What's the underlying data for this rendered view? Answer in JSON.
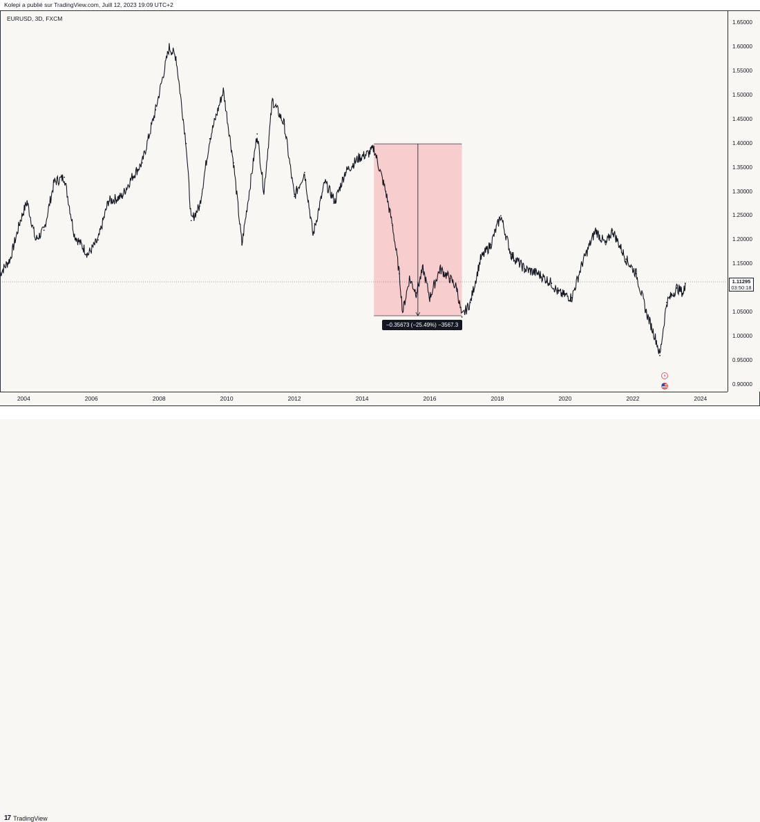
{
  "header": {
    "publisher": "Kolepi a publié sur TradingView.com, Juill 12, 2023 19:09 UTC+2"
  },
  "symbol": {
    "label": "EURUSD, 3D, FXCM"
  },
  "price_tag": {
    "price": "1.11295",
    "countdown": "03:50:18"
  },
  "measure": {
    "label": "−0.35673 (−25.49%) −3567.3"
  },
  "footer": {
    "brand": "TradingView",
    "logo": "17"
  },
  "colors": {
    "line": "#131722",
    "measure_fill": "#f7c6c7",
    "grid": "#e0e3eb"
  },
  "chart_data": {
    "type": "line",
    "series": [
      {
        "values": [
          [
            "2003.3",
            1.13
          ],
          [
            "2003.6",
            1.16
          ],
          [
            "2003.9",
            1.24
          ],
          [
            "2004.1",
            1.28
          ],
          [
            "2004.35",
            1.2
          ],
          [
            "2004.6",
            1.22
          ],
          [
            "2004.9",
            1.32
          ],
          [
            "2005.2",
            1.33
          ],
          [
            "2005.5",
            1.21
          ],
          [
            "2005.9",
            1.17
          ],
          [
            "2006.2",
            1.2
          ],
          [
            "2006.5",
            1.28
          ],
          [
            "2006.9",
            1.29
          ],
          [
            "2007.2",
            1.33
          ],
          [
            "2007.5",
            1.36
          ],
          [
            "2007.9",
            1.47
          ],
          [
            "2008.3",
            1.6
          ],
          [
            "2008.5",
            1.58
          ],
          [
            "2008.8",
            1.4
          ],
          [
            "2008.95",
            1.24
          ],
          [
            "2009.2",
            1.27
          ],
          [
            "2009.5",
            1.41
          ],
          [
            "2009.9",
            1.51
          ],
          [
            "2010.2",
            1.36
          ],
          [
            "2010.45",
            1.19
          ],
          [
            "2010.9",
            1.42
          ],
          [
            "2011.1",
            1.3
          ],
          [
            "2011.35",
            1.49
          ],
          [
            "2011.7",
            1.44
          ],
          [
            "2012.0",
            1.29
          ],
          [
            "2012.3",
            1.34
          ],
          [
            "2012.55",
            1.21
          ],
          [
            "2012.9",
            1.32
          ],
          [
            "2013.2",
            1.28
          ],
          [
            "2013.5",
            1.34
          ],
          [
            "2013.9",
            1.37
          ],
          [
            "2014.2",
            1.38
          ],
          [
            "2014.35",
            1.39
          ],
          [
            "2014.7",
            1.3
          ],
          [
            "2014.9",
            1.23
          ],
          [
            "2015.1",
            1.13
          ],
          [
            "2015.2",
            1.05
          ],
          [
            "2015.4",
            1.12
          ],
          [
            "2015.6",
            1.09
          ],
          [
            "2015.8",
            1.14
          ],
          [
            "2016.0",
            1.08
          ],
          [
            "2016.3",
            1.14
          ],
          [
            "2016.6",
            1.12
          ],
          [
            "2016.8",
            1.1
          ],
          [
            "2016.95",
            1.04
          ],
          [
            "2017.2",
            1.07
          ],
          [
            "2017.5",
            1.16
          ],
          [
            "2017.8",
            1.19
          ],
          [
            "2018.1",
            1.25
          ],
          [
            "2018.4",
            1.17
          ],
          [
            "2018.8",
            1.14
          ],
          [
            "2019.2",
            1.13
          ],
          [
            "2019.6",
            1.11
          ],
          [
            "2019.8",
            1.09
          ],
          [
            "2020.2",
            1.08
          ],
          [
            "2020.5",
            1.15
          ],
          [
            "2020.9",
            1.22
          ],
          [
            "2021.2",
            1.19
          ],
          [
            "2021.4",
            1.22
          ],
          [
            "2021.8",
            1.16
          ],
          [
            "2022.1",
            1.13
          ],
          [
            "2022.4",
            1.05
          ],
          [
            "2022.7",
            0.99
          ],
          [
            "2022.8",
            0.96
          ],
          [
            "2023.0",
            1.07
          ],
          [
            "2023.3",
            1.1
          ],
          [
            "2023.5",
            1.09
          ],
          [
            "2023.55",
            1.11
          ]
        ]
      }
    ],
    "measure": {
      "x_start": "2014.35",
      "x_end": "2016.95",
      "y_top": 1.39939,
      "y_bottom": 1.04266,
      "change": -0.35673,
      "change_pct": -25.49,
      "pips": -3567.3
    },
    "last_price": 1.11295,
    "xlabel": "",
    "ylabel": "",
    "x_ticks": [
      "2004",
      "2006",
      "2008",
      "2010",
      "2012",
      "2014",
      "2016",
      "2018",
      "2020",
      "2022",
      "2024"
    ],
    "y_ticks": [
      "0.90000",
      "0.95000",
      "1.00000",
      "1.05000",
      "1.10000",
      "1.15000",
      "1.20000",
      "1.25000",
      "1.30000",
      "1.35000",
      "1.40000",
      "1.45000",
      "1.50000",
      "1.55000",
      "1.60000",
      "1.65000"
    ],
    "xlim": [
      "2003.3",
      "2024.8"
    ],
    "ylim": [
      0.885,
      1.675
    ],
    "grid": false
  }
}
